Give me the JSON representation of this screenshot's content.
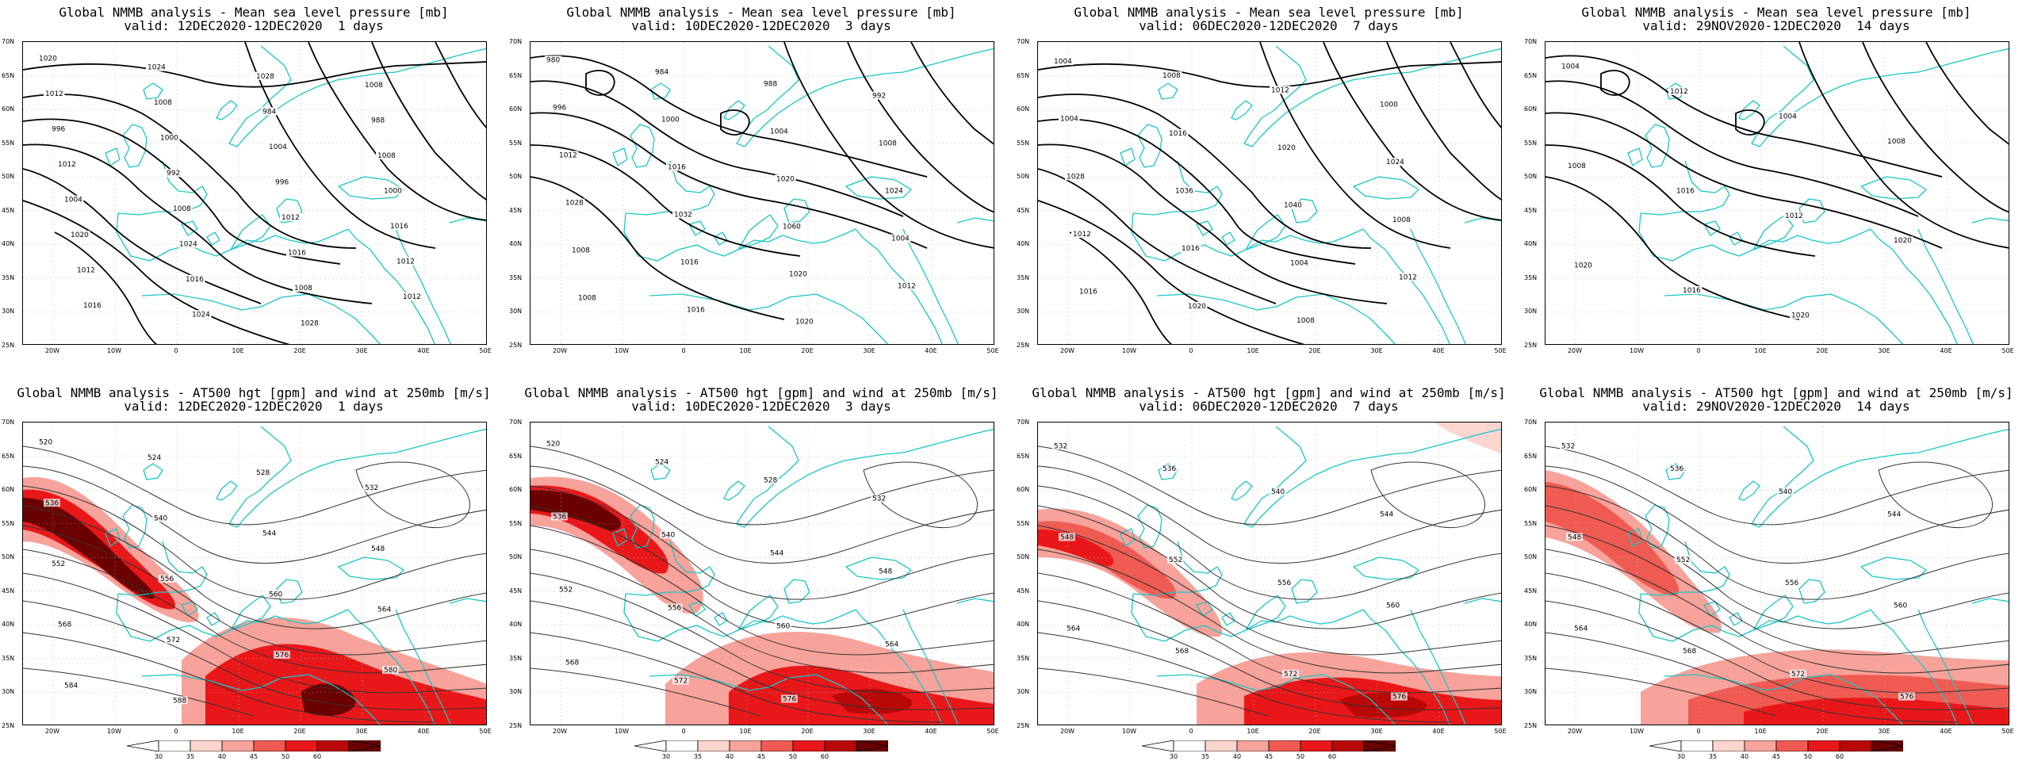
{
  "colors": {
    "coast": "#19c6c6",
    "contour": "#000000",
    "wind": [
      "#ffffff",
      "#fcd5cf",
      "#f7a29a",
      "#ef5b52",
      "#e8181a",
      "#b80808",
      "#6b0000"
    ]
  },
  "lat_labels": [
    "70N",
    "65N",
    "60N",
    "55N",
    "50N",
    "45N",
    "40N",
    "35N",
    "30N",
    "25N"
  ],
  "lon_labels": [
    "20W",
    "10W",
    "0",
    "10E",
    "20E",
    "30E",
    "40E",
    "50E"
  ],
  "colorbar": {
    "ticks": [
      "30",
      "35",
      "40",
      "45",
      "50",
      "60"
    ]
  },
  "panels": [
    {
      "id": "mslp-1d",
      "line1": "Global NMMB analysis - Mean sea level pressure [mb]",
      "line2": "valid: 12DEC2020-12DEC2020  1 days",
      "labels": [
        "1020",
        "1024",
        "1028",
        "1008",
        "1012",
        "1008",
        "984",
        "988",
        "996",
        "1000",
        "1004",
        "1008",
        "1012",
        "992",
        "996",
        "1000",
        "1004",
        "1008",
        "1012",
        "1016",
        "1020",
        "1024",
        "1016",
        "1012",
        "1012",
        "1016",
        "1008",
        "1012",
        "1016",
        "1024",
        "1028"
      ]
    },
    {
      "id": "mslp-3d",
      "line1": "Global NMMB analysis - Mean sea level pressure [mb]",
      "line2": "valid: 10DEC2020-12DEC2020  3 days",
      "labels": [
        "980",
        "984",
        "988",
        "992",
        "996",
        "1000",
        "1004",
        "1008",
        "1012",
        "1016",
        "1020",
        "1024",
        "1028",
        "1032",
        "1060",
        "1004",
        "1008",
        "1016",
        "1020",
        "1012",
        "1008",
        "1016",
        "1020"
      ]
    },
    {
      "id": "mslp-7d",
      "line1": "Global NMMB analysis - Mean sea level pressure [mb]",
      "line2": "valid: 06DEC2020-12DEC2020  7 days",
      "labels": [
        "1004",
        "1008",
        "1012",
        "1000",
        "1004",
        "1016",
        "1020",
        "1024",
        "1028",
        "1036",
        "1040",
        "1008",
        "1012",
        "1016",
        "1004",
        "1012",
        "1016",
        "1020",
        "1008"
      ]
    },
    {
      "id": "mslp-14d",
      "line1": "Global NMMB analysis - Mean sea level pressure [mb]",
      "line2": "valid: 29NOV2020-12DEC2020  14 days",
      "labels": [
        "1004",
        "1012",
        "1004",
        "1008",
        "1008",
        "1016",
        "1012",
        "1020",
        "1020",
        "1016",
        "1020"
      ]
    },
    {
      "id": "t500-1d",
      "line1": "Global NMMB analysis - AT500 hgt [gpm] and wind at 250mb [m/s]",
      "line2": "valid: 12DEC2020-12DEC2020  1 days",
      "labels": [
        "520",
        "524",
        "528",
        "532",
        "536",
        "540",
        "544",
        "548",
        "552",
        "556",
        "560",
        "564",
        "568",
        "572",
        "576",
        "580",
        "584",
        "588"
      ]
    },
    {
      "id": "t500-3d",
      "line1": "Global NMMB analysis - AT500 hgt [gpm] and wind at 250mb [m/s]",
      "line2": "valid: 10DEC2020-12DEC2020  3 days",
      "labels": [
        "520",
        "524",
        "528",
        "532",
        "536",
        "540",
        "544",
        "548",
        "552",
        "556",
        "560",
        "564",
        "568",
        "572",
        "576"
      ]
    },
    {
      "id": "t500-7d",
      "line1": "Global NMMB analysis - AT500 hgt [gpm] and wind at 250mb [m/s]",
      "line2": "valid: 06DEC2020-12DEC2020  7 days",
      "labels": [
        "532",
        "536",
        "540",
        "544",
        "548",
        "552",
        "556",
        "560",
        "564",
        "568",
        "572",
        "576"
      ]
    },
    {
      "id": "t500-14d",
      "line1": "Global NMMB analysis - AT500 hgt [gpm] and wind at 250mb [m/s]",
      "line2": "valid: 29NOV2020-12DEC2020  14 days",
      "labels": [
        "532",
        "536",
        "540",
        "544",
        "548",
        "552",
        "556",
        "560",
        "564",
        "568",
        "572",
        "576"
      ]
    }
  ]
}
